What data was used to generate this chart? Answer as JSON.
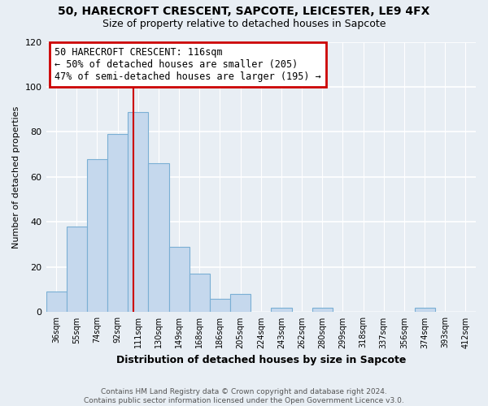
{
  "title": "50, HARECROFT CRESCENT, SAPCOTE, LEICESTER, LE9 4FX",
  "subtitle": "Size of property relative to detached houses in Sapcote",
  "xlabel": "Distribution of detached houses by size in Sapcote",
  "ylabel": "Number of detached properties",
  "bin_labels": [
    "36sqm",
    "55sqm",
    "74sqm",
    "92sqm",
    "111sqm",
    "130sqm",
    "149sqm",
    "168sqm",
    "186sqm",
    "205sqm",
    "224sqm",
    "243sqm",
    "262sqm",
    "280sqm",
    "299sqm",
    "318sqm",
    "337sqm",
    "356sqm",
    "374sqm",
    "393sqm",
    "412sqm"
  ],
  "bar_values": [
    9,
    38,
    68,
    79,
    89,
    66,
    29,
    17,
    6,
    8,
    0,
    2,
    0,
    2,
    0,
    0,
    0,
    0,
    2,
    0,
    0
  ],
  "bar_color": "#c5d8ed",
  "bar_edge_color": "#7aafd4",
  "annotation_text": "50 HARECROFT CRESCENT: 116sqm\n← 50% of detached houses are smaller (205)\n47% of semi-detached houses are larger (195) →",
  "annotation_box_color": "#ffffff",
  "annotation_box_edge": "#cc0000",
  "vline_color": "#cc0000",
  "ylim": [
    0,
    120
  ],
  "yticks": [
    0,
    20,
    40,
    60,
    80,
    100,
    120
  ],
  "footer_text": "Contains HM Land Registry data © Crown copyright and database right 2024.\nContains public sector information licensed under the Open Government Licence v3.0.",
  "bg_color": "#e8eef4",
  "grid_color": "#ffffff"
}
